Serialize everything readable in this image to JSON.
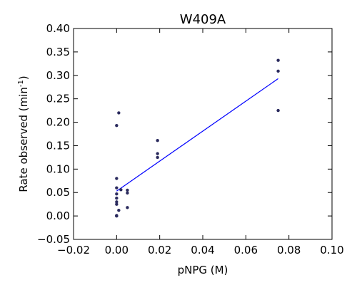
{
  "chart_data": {
    "type": "scatter",
    "title": "W409A",
    "xlabel": "pNPG (M)",
    "ylabel": {
      "prefix": "Rate observed (min",
      "superscript": "-1",
      "suffix": ")"
    },
    "xlim": [
      -0.02,
      0.1
    ],
    "ylim": [
      -0.05,
      0.4
    ],
    "x_ticks": [
      -0.02,
      0.0,
      0.02,
      0.04,
      0.06,
      0.08,
      0.1
    ],
    "x_tick_labels": [
      "−0.02",
      "0.00",
      "0.02",
      "0.04",
      "0.06",
      "0.08",
      "0.10"
    ],
    "y_ticks": [
      -0.05,
      0.0,
      0.05,
      0.1,
      0.15,
      0.2,
      0.25,
      0.3,
      0.35,
      0.4
    ],
    "y_tick_labels": [
      "−0.05",
      "0.00",
      "0.05",
      "0.10",
      "0.15",
      "0.20",
      "0.25",
      "0.30",
      "0.35",
      "0.40"
    ],
    "grid": false,
    "point_color": "#2b2b5e",
    "line_color": "#0000ff",
    "points": [
      {
        "x": 0.0,
        "y": 0.0
      },
      {
        "x": 0.0,
        "y": 0.0
      },
      {
        "x": 0.0,
        "y": 0.001
      },
      {
        "x": 0.0,
        "y": 0.025
      },
      {
        "x": 0.0,
        "y": 0.03
      },
      {
        "x": 0.0,
        "y": 0.038
      },
      {
        "x": 0.0,
        "y": 0.047
      },
      {
        "x": 0.0,
        "y": 0.06
      },
      {
        "x": 0.0,
        "y": 0.08
      },
      {
        "x": 0.0,
        "y": 0.193
      },
      {
        "x": 0.001,
        "y": 0.012
      },
      {
        "x": 0.001,
        "y": 0.22
      },
      {
        "x": 0.002,
        "y": 0.056
      },
      {
        "x": 0.005,
        "y": 0.018
      },
      {
        "x": 0.005,
        "y": 0.049
      },
      {
        "x": 0.005,
        "y": 0.055
      },
      {
        "x": 0.019,
        "y": 0.125
      },
      {
        "x": 0.019,
        "y": 0.133
      },
      {
        "x": 0.019,
        "y": 0.161
      },
      {
        "x": 0.075,
        "y": 0.225
      },
      {
        "x": 0.075,
        "y": 0.309
      },
      {
        "x": 0.075,
        "y": 0.332
      }
    ],
    "fit_line": {
      "x": [
        0.0,
        0.075
      ],
      "y": [
        0.053,
        0.293
      ]
    }
  }
}
